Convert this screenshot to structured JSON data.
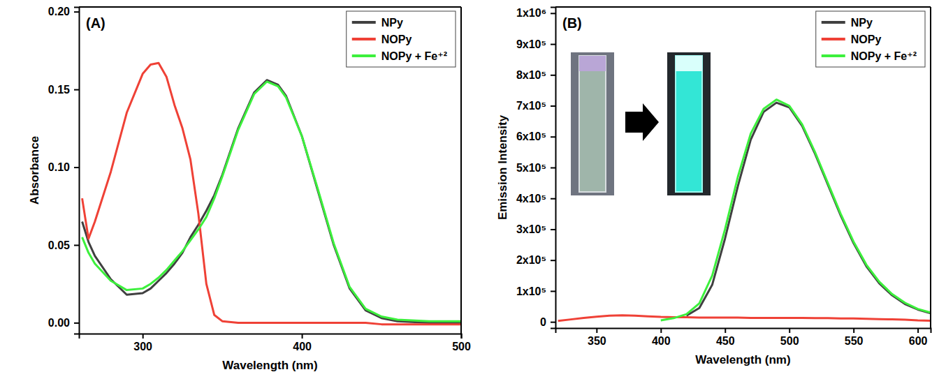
{
  "chart_data": [
    {
      "type": "line",
      "title": "(A)",
      "x_label": "Wavelength (nm)",
      "y_label": "Absorbance",
      "x": [
        262,
        266,
        270,
        280,
        290,
        300,
        305,
        310,
        315,
        320,
        325,
        330,
        335,
        340,
        345,
        350,
        360,
        370,
        378,
        385,
        390,
        400,
        410,
        420,
        430,
        440,
        450,
        460,
        480,
        500
      ],
      "series": [
        {
          "name": "NPy",
          "color": "#404040",
          "values": [
            0.065,
            0.052,
            0.043,
            0.028,
            0.018,
            0.019,
            0.022,
            0.027,
            0.032,
            0.038,
            0.045,
            0.055,
            0.063,
            0.072,
            0.082,
            0.095,
            0.125,
            0.148,
            0.156,
            0.153,
            0.146,
            0.12,
            0.085,
            0.05,
            0.022,
            0.008,
            0.003,
            0.001,
            0,
            0
          ]
        },
        {
          "name": "NOPy",
          "color": "#ef4136",
          "values": [
            0.08,
            0.054,
            0.065,
            0.097,
            0.135,
            0.16,
            0.166,
            0.167,
            0.158,
            0.14,
            0.125,
            0.105,
            0.07,
            0.025,
            0.005,
            0.001,
            0,
            0,
            0,
            0,
            0,
            0,
            0,
            0,
            0,
            0,
            -0.001,
            -0.001,
            -0.001,
            -0.001
          ]
        },
        {
          "name": "NOPy + Fe⁺²",
          "color": "#3cf03c",
          "values": [
            0.055,
            0.045,
            0.038,
            0.027,
            0.021,
            0.022,
            0.025,
            0.029,
            0.034,
            0.04,
            0.046,
            0.053,
            0.06,
            0.068,
            0.08,
            0.094,
            0.124,
            0.147,
            0.155,
            0.152,
            0.145,
            0.12,
            0.086,
            0.051,
            0.023,
            0.009,
            0.004,
            0.002,
            0.001,
            0.001
          ]
        }
      ],
      "xlim": [
        260,
        500
      ],
      "xticks": [
        300,
        400,
        500
      ],
      "ylim": [
        -0.007,
        0.203
      ],
      "yticks": [
        {
          "value": 0,
          "label": "0.00"
        },
        {
          "value": 0.05,
          "label": "0.05"
        },
        {
          "value": 0.1,
          "label": "0.10"
        },
        {
          "value": 0.15,
          "label": "0.15"
        },
        {
          "value": 0.2,
          "label": "0.20"
        }
      ],
      "grid": false,
      "legend": "upper right"
    },
    {
      "type": "line",
      "title": "(B)",
      "x_label": "Wavelength (nm)",
      "y_label": "Emission Intensity",
      "x": [
        320,
        330,
        340,
        350,
        360,
        370,
        380,
        390,
        400,
        410,
        420,
        430,
        440,
        450,
        460,
        470,
        480,
        490,
        500,
        510,
        520,
        530,
        540,
        550,
        560,
        570,
        580,
        590,
        600,
        610
      ],
      "series": [
        {
          "name": "NPy",
          "color": "#404040",
          "values": [
            null,
            null,
            null,
            null,
            null,
            null,
            null,
            null,
            null,
            null,
            20000,
            45000,
            120000,
            270000,
            440000,
            590000,
            680000,
            710000,
            695000,
            635000,
            545000,
            445000,
            345000,
            255000,
            180000,
            125000,
            86000,
            58000,
            40000,
            28000
          ]
        },
        {
          "name": "NOPy",
          "color": "#ef4136",
          "values": [
            3000,
            8000,
            13000,
            17000,
            20000,
            21000,
            20000,
            18000,
            16000,
            15000,
            15000,
            14000,
            14000,
            14000,
            14000,
            13000,
            13000,
            13000,
            13000,
            13000,
            12000,
            12000,
            11000,
            11000,
            10000,
            9000,
            8000,
            7000,
            5000,
            4000
          ]
        },
        {
          "name": "NOPy + Fe⁺²",
          "color": "#3cf03c",
          "values": [
            null,
            null,
            null,
            null,
            null,
            null,
            null,
            null,
            5000,
            12000,
            25000,
            60000,
            150000,
            300000,
            470000,
            610000,
            690000,
            720000,
            700000,
            640000,
            550000,
            450000,
            350000,
            260000,
            185000,
            130000,
            90000,
            62000,
            42000,
            30000
          ]
        }
      ],
      "xlim": [
        318,
        610
      ],
      "xticks": [
        350,
        400,
        450,
        500,
        550,
        600
      ],
      "ylim": [
        -20000,
        1020000
      ],
      "yticks": [
        0,
        {
          "value": 100000,
          "label": "1x10⁵"
        },
        {
          "value": 200000,
          "label": "2x10⁵"
        },
        {
          "value": 300000,
          "label": "3x10⁵"
        },
        {
          "value": 400000,
          "label": "4x10⁵"
        },
        {
          "value": 500000,
          "label": "5x10⁵"
        },
        {
          "value": 600000,
          "label": "6x10⁵"
        },
        {
          "value": 700000,
          "label": "7x10⁵"
        },
        {
          "value": 800000,
          "label": "8x10⁵"
        },
        {
          "value": 900000,
          "label": "9x10⁵"
        },
        {
          "value": 1000000,
          "label": "1x10⁶"
        }
      ],
      "grid": false,
      "legend": "upper right"
    }
  ]
}
